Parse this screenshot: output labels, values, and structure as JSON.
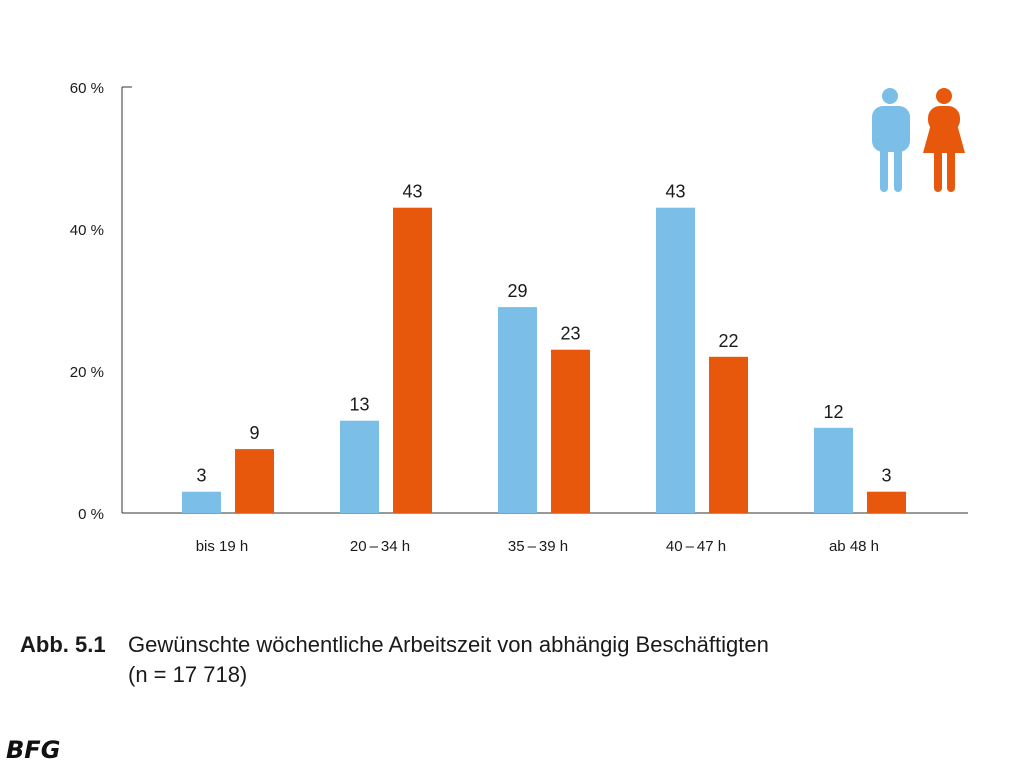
{
  "chart_data": {
    "type": "bar",
    "categories": [
      "bis 19 h",
      "20 – 34 h",
      "35 – 39 h",
      "40 – 47 h",
      "ab 48 h"
    ],
    "series": [
      {
        "values": [
          3,
          13,
          29,
          43,
          12
        ],
        "color": "#7bbfe8"
      },
      {
        "values": [
          9,
          43,
          23,
          22,
          3
        ],
        "color": "#e8580c"
      }
    ],
    "ylim": [
      0,
      60
    ],
    "yticks": [
      {
        "value": 0,
        "label": "0 %"
      },
      {
        "value": 20,
        "label": "20 %"
      },
      {
        "value": 40,
        "label": "40 %"
      },
      {
        "value": 60,
        "label": "60 %"
      }
    ],
    "grid": false,
    "legend": "top-right",
    "legend_icons": [
      "male-figure-icon",
      "female-figure-icon"
    ]
  },
  "caption": {
    "label": "Abb. 5.1",
    "line1": "Gewünschte wöchentliche Arbeitszeit von abhängig Beschäftigten",
    "line2": "(n = 17 718)"
  },
  "footer": "BFG"
}
